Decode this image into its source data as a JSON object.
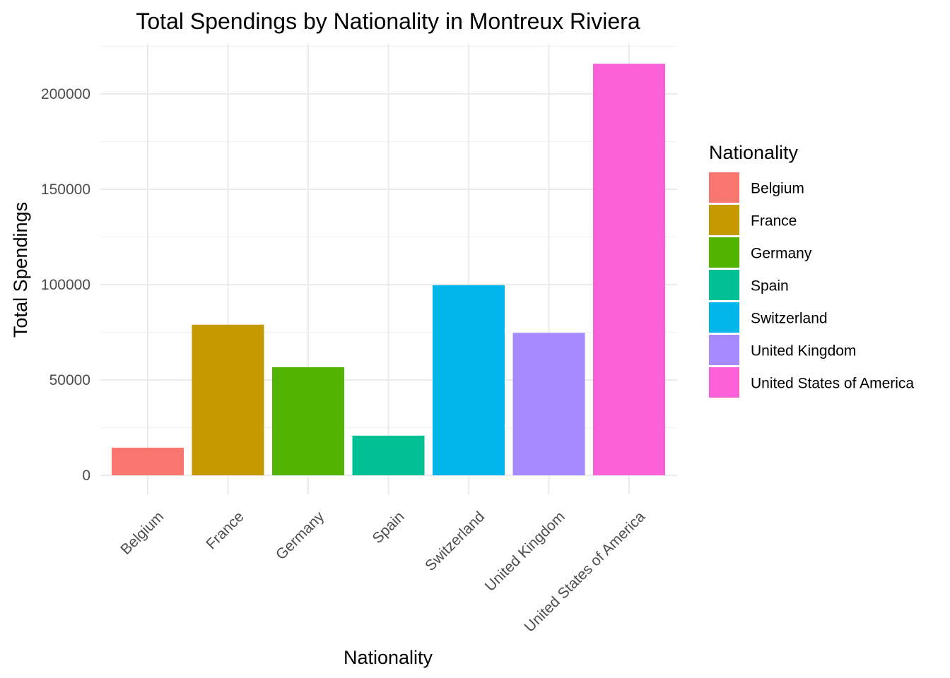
{
  "chart_data": {
    "type": "bar",
    "title": "Total Spendings by Nationality in Montreux Riviera",
    "xlabel": "Nationality",
    "ylabel": "Total Spendings",
    "ylim": [
      -10000,
      225000
    ],
    "yticks": [
      0,
      50000,
      100000,
      150000,
      200000
    ],
    "ytick_labels": [
      "0",
      "50000",
      "100000",
      "150000",
      "200000"
    ],
    "grid": true,
    "categories": [
      "Belgium",
      "France",
      "Germany",
      "Spain",
      "Switzerland",
      "United Kingdom",
      "United States of America"
    ],
    "values": [
      14500,
      79000,
      56700,
      20800,
      99700,
      74700,
      215800
    ],
    "colors": [
      "#F8766D",
      "#C49A00",
      "#53B400",
      "#00C094",
      "#00B6EB",
      "#A58AFF",
      "#FB61D7"
    ],
    "legend": {
      "title": "Nationality",
      "position": "right",
      "entries": [
        "Belgium",
        "France",
        "Germany",
        "Spain",
        "Switzerland",
        "United Kingdom",
        "United States of America"
      ]
    }
  }
}
